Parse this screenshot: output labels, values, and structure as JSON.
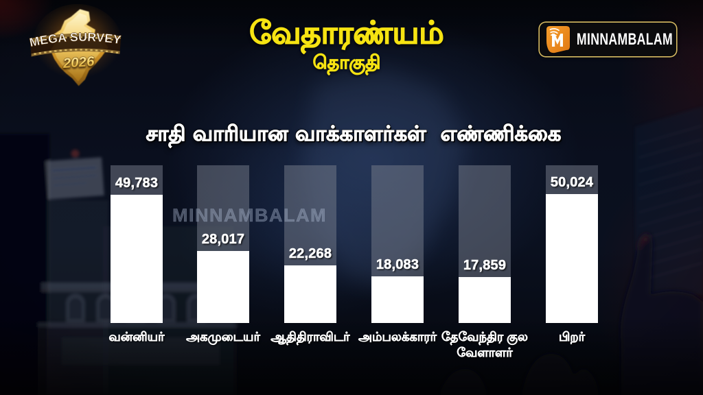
{
  "badge": {
    "line1": "MEGA SURVEY",
    "line2": "2026"
  },
  "header": {
    "title": "வேதாரண்யம்",
    "subtitle": "தொகுதி"
  },
  "logo": {
    "text": "MINNAMBALAM"
  },
  "watermark": "MINNAMBALAM",
  "chart_data": {
    "type": "bar",
    "title": "சாதி வாரியான வாக்காளர்கள்  எண்ணிக்கை",
    "categories": [
      "வன்னியர்",
      "அகமுடையர்",
      "ஆதிதிராவிடர்",
      "அம்பலக்காரர்",
      "தேவேந்திர குல வேளாளர்",
      "பிறர்"
    ],
    "values": [
      49783,
      28017,
      22268,
      18083,
      17859,
      50024
    ],
    "value_labels": [
      "49,783",
      "28,017",
      "22,268",
      "18,083",
      "17,859",
      "50,024"
    ],
    "ylim": [
      0,
      50024
    ],
    "legend": false,
    "grid": false,
    "colors": {
      "bar_fill": "#ffffff",
      "bar_track": "#4a4e59",
      "value_text": "#ffffff",
      "category_text": "#ffffff",
      "title_text": "#ffffff",
      "header_yellow": "#f6e312",
      "logo_orange": "#e8821e",
      "background": "#0a0f1e"
    }
  }
}
